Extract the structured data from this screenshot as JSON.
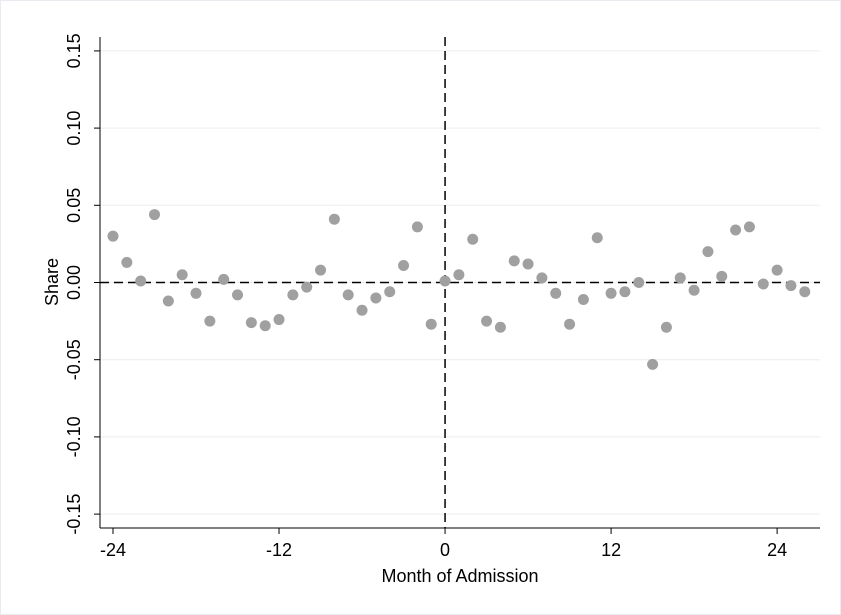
{
  "chart_data": {
    "type": "scatter",
    "x_label": "Month of Admission",
    "y_label": "Share",
    "x": [
      -24,
      -23,
      -22,
      -21,
      -20,
      -19,
      -18,
      -17,
      -16,
      -15,
      -14,
      -13,
      -12,
      -11,
      -10,
      -9,
      -8,
      -7,
      -6,
      -5,
      -4,
      -3,
      -2,
      -1,
      0,
      1,
      2,
      3,
      4,
      5,
      6,
      7,
      8,
      9,
      10,
      11,
      12,
      13,
      14,
      15,
      16,
      17,
      18,
      19,
      20,
      21,
      22,
      23,
      24,
      25,
      26
    ],
    "values": [
      0.03,
      0.013,
      0.001,
      0.044,
      -0.012,
      0.005,
      -0.007,
      -0.025,
      0.002,
      -0.008,
      -0.026,
      -0.028,
      -0.024,
      -0.008,
      -0.003,
      0.008,
      0.041,
      -0.008,
      -0.018,
      -0.01,
      -0.006,
      0.011,
      0.036,
      -0.027,
      0.001,
      0.005,
      0.028,
      -0.025,
      -0.029,
      0.014,
      0.012,
      0.003,
      -0.007,
      -0.027,
      -0.011,
      0.029,
      -0.007,
      -0.006,
      0.0,
      -0.053,
      -0.029,
      0.003,
      -0.005,
      0.02,
      0.004,
      0.034,
      0.036,
      -0.001,
      0.008,
      -0.002,
      -0.006
    ],
    "color": "#a0a0a0",
    "xlim": [
      -24.94,
      27.1
    ],
    "ylim": [
      -0.159,
      0.159
    ],
    "xticks": [
      -24,
      -12,
      0,
      12,
      24
    ],
    "yticks": [
      {
        "value": -0.15,
        "label": "-0.15"
      },
      {
        "value": -0.1,
        "label": "-0.10"
      },
      {
        "value": -0.05,
        "label": "-0.05"
      },
      {
        "value": 0,
        "label": "0.00"
      },
      {
        "value": 0.05,
        "label": "0.05"
      },
      {
        "value": 0.1,
        "label": "0.10"
      },
      {
        "value": 0.15,
        "label": "0.15"
      }
    ],
    "grid": true,
    "reference_lines": {
      "x": 0,
      "y": 0
    }
  }
}
